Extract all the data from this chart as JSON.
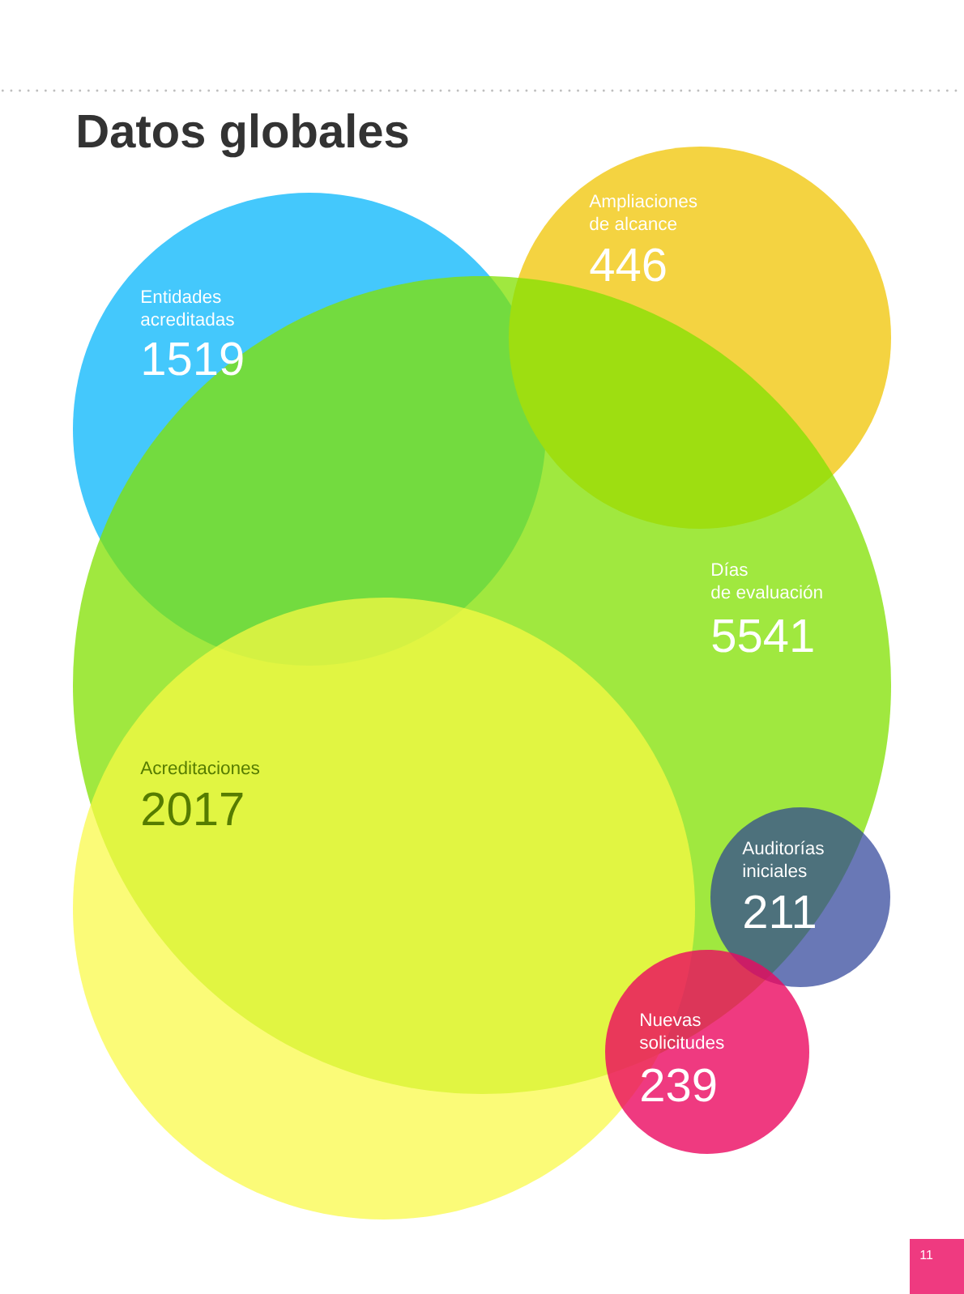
{
  "chart_data": {
    "type": "other",
    "title": "Datos globales",
    "categories": [
      "Entidades acreditadas",
      "Ampliaciones de alcance",
      "Días de evaluación",
      "Acreditaciones",
      "Auditorías iniciales",
      "Nuevas solicitudes"
    ],
    "values": [
      1519,
      446,
      5541,
      2017,
      211,
      239
    ],
    "colors": [
      "#44c8fc",
      "#f4d341",
      "#a0e83f",
      "#fbfb78",
      "#6a78b6",
      "#ef3a80"
    ],
    "data_labels": true,
    "annotations": [
      "11"
    ]
  }
}
